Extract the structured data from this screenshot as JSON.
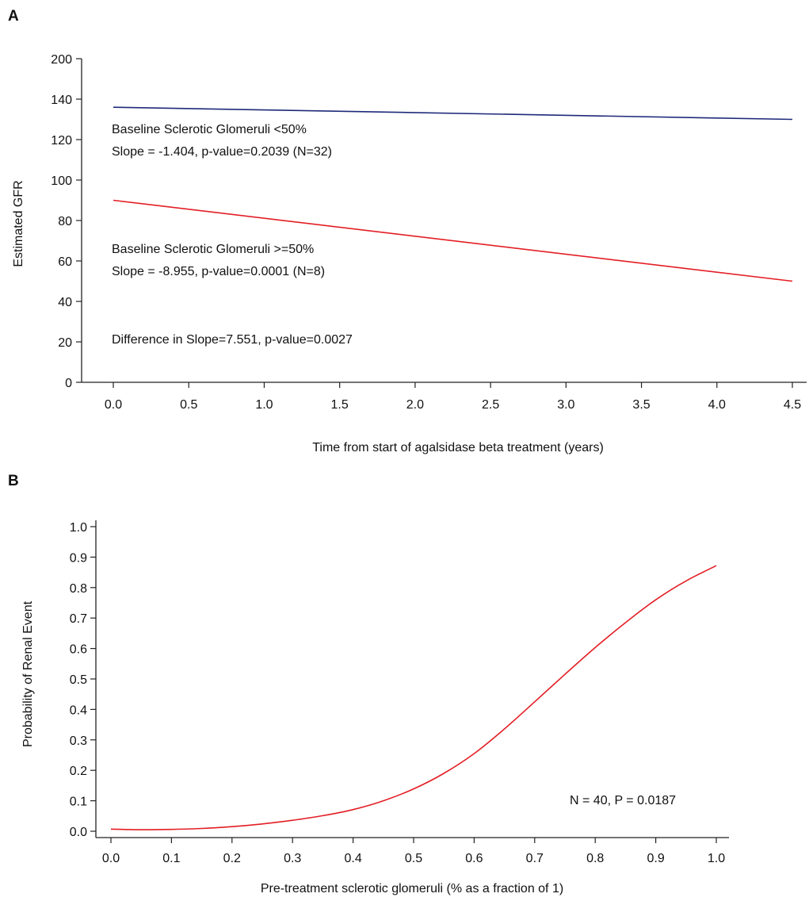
{
  "panels": [
    {
      "letter": "A"
    },
    {
      "letter": "B"
    }
  ],
  "chart_data": [
    {
      "type": "line",
      "panel": "A",
      "title": "",
      "xlabel": "Time from start of agalsidase beta treatment (years)",
      "ylabel": "Estimated GFR",
      "xlim": [
        0.0,
        4.5
      ],
      "ylim": [
        0,
        200
      ],
      "y_axis_break": true,
      "xticks": [
        "0.0",
        "0.5",
        "1.0",
        "1.5",
        "2.0",
        "2.5",
        "3.0",
        "3.5",
        "4.0",
        "4.5"
      ],
      "yticks": [
        "0",
        "20",
        "40",
        "60",
        "80",
        "100",
        "120",
        "140",
        "200"
      ],
      "grid": false,
      "legend": "none",
      "series": [
        {
          "color": "#1f2a7a",
          "x": [
            0.0,
            4.5
          ],
          "y": [
            136,
            130
          ]
        },
        {
          "color": "#e31e24",
          "x": [
            0.0,
            4.5
          ],
          "y": [
            90,
            50
          ]
        }
      ],
      "annotations": [
        "Baseline Sclerotic Glomeruli <50%",
        "Slope = -1.404, p-value=0.2039 (N=32)",
        "Baseline Sclerotic Glomeruli >=50%",
        "Slope = -8.955, p-value=0.0001 (N=8)",
        "Difference in Slope=7.551, p-value=0.0027"
      ]
    },
    {
      "type": "line",
      "panel": "B",
      "title": "",
      "xlabel": "Pre-treatment sclerotic glomeruli (% as a fraction of 1)",
      "ylabel": "Probability of Renal Event",
      "xlim": [
        0.0,
        1.0
      ],
      "ylim": [
        0.0,
        1.0
      ],
      "xticks": [
        "0.0",
        "0.1",
        "0.2",
        "0.3",
        "0.4",
        "0.5",
        "0.6",
        "0.7",
        "0.8",
        "0.9",
        "1.0"
      ],
      "yticks": [
        "0.0",
        "0.1",
        "0.2",
        "0.3",
        "0.4",
        "0.5",
        "0.6",
        "0.7",
        "0.8",
        "0.9",
        "1.0"
      ],
      "grid": false,
      "legend": "none",
      "series": [
        {
          "color": "#e31e24",
          "x": [
            0.0,
            0.05,
            0.1,
            0.15,
            0.2,
            0.25,
            0.3,
            0.35,
            0.4,
            0.45,
            0.5,
            0.55,
            0.6,
            0.65,
            0.7,
            0.75,
            0.8,
            0.85,
            0.9,
            0.95,
            1.0
          ],
          "y": [
            0.007,
            0.005,
            0.006,
            0.009,
            0.015,
            0.024,
            0.036,
            0.051,
            0.071,
            0.1,
            0.139,
            0.19,
            0.255,
            0.336,
            0.425,
            0.515,
            0.603,
            0.685,
            0.76,
            0.822,
            0.872
          ]
        }
      ],
      "annotations": [
        "N = 40, P = 0.0187"
      ]
    }
  ]
}
